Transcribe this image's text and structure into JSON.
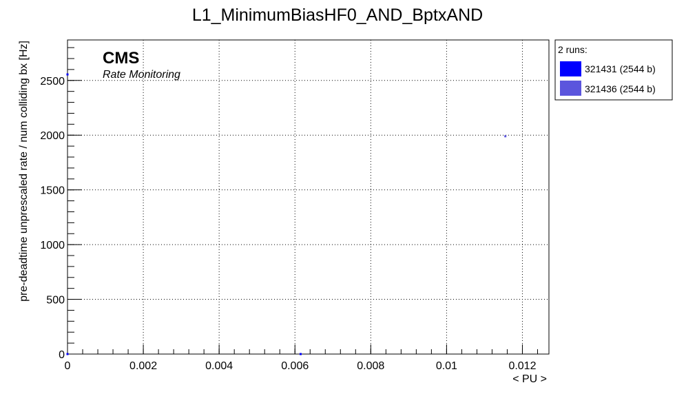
{
  "chart_data": {
    "type": "scatter",
    "title": "L1_MinimumBiasHF0_AND_BptxAND",
    "xlabel": "< PU >",
    "ylabel": "pre-deadtime unprescaled rate / num colliding bx [Hz]",
    "xlim": [
      0,
      0.0127
    ],
    "ylim": [
      0,
      2870
    ],
    "x_ticks": [
      0,
      0.002,
      0.004,
      0.006,
      0.008,
      0.01,
      0.012
    ],
    "x_tick_labels": [
      "0",
      "0.002",
      "0.004",
      "0.006",
      "0.008",
      "0.01",
      "0.012"
    ],
    "y_ticks": [
      0,
      500,
      1000,
      1500,
      2000,
      2500
    ],
    "y_tick_labels": [
      "0",
      "500",
      "1000",
      "1500",
      "2000",
      "2500"
    ],
    "grid": true,
    "legend_placement": "outside-top-right",
    "series": [
      {
        "name": "321431 (2544 b)",
        "color": "#0000ff",
        "points": [
          {
            "x": 0.0,
            "y": 2555
          },
          {
            "x": 0.0,
            "y": 0
          },
          {
            "x": 0.00615,
            "y": 0
          }
        ]
      },
      {
        "name": "321436 (2544 b)",
        "color": "#5b55dd",
        "points": [
          {
            "x": 0.01155,
            "y": 1990
          }
        ]
      }
    ]
  },
  "annotations": {
    "experiment": "CMS",
    "subtitle": "Rate Monitoring"
  },
  "legend": {
    "header": "2 runs:"
  }
}
